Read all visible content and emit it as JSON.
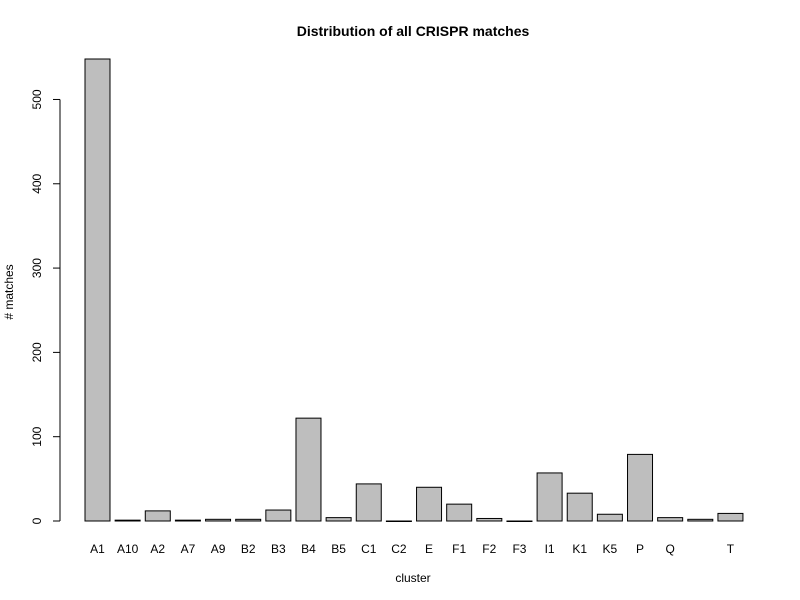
{
  "chart_data": {
    "type": "bar",
    "title": "Distribution of all CRISPR matches",
    "xlabel": "cluster",
    "ylabel": "# matches",
    "categories": [
      "A1",
      "A10",
      "A2",
      "A7",
      "A9",
      "B2",
      "B3",
      "B4",
      "B5",
      "C1",
      "C2",
      "E",
      "F1",
      "F2",
      "F3",
      "I1",
      "K1",
      "K5",
      "P",
      "Q",
      "",
      "T"
    ],
    "values": [
      548,
      1,
      12,
      1,
      2,
      2,
      13,
      122,
      4,
      44,
      0,
      40,
      20,
      3,
      0,
      57,
      33,
      8,
      79,
      4,
      2,
      9
    ],
    "ylim": [
      0,
      548
    ],
    "yticks": [
      0,
      100,
      200,
      300,
      400,
      500
    ],
    "bar_color": "#bebebe",
    "grid": false,
    "legend": "none"
  }
}
